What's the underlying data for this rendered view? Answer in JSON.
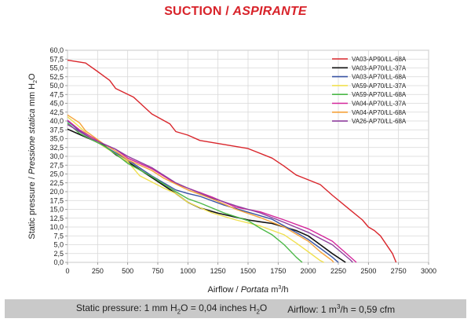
{
  "header": {
    "title_main": "SUCTION / ",
    "title_italic": "ASPIRANTE"
  },
  "footer": {
    "static_pressure_prefix": "Static pressure: 1 mm H",
    "static_pressure_sub": "2",
    "static_pressure_suffix": "O = 0,04 inches H",
    "static_pressure_sub2": "2",
    "static_pressure_end": "O",
    "airflow_prefix": "Airflow: 1 m",
    "airflow_sup": "3",
    "airflow_suffix": "/h = 0,59 cfm"
  },
  "chart_data": {
    "type": "line",
    "title": "SUCTION / ASPIRANTE",
    "xlabel_parts": [
      "Airflow / ",
      "Portata",
      " m",
      "3",
      "/h"
    ],
    "ylabel_parts": [
      "Static pressure / ",
      "Pressione statica",
      " mm H",
      "2",
      "O"
    ],
    "xlim": [
      0,
      3000
    ],
    "ylim": [
      0,
      60
    ],
    "xticks": [
      0,
      250,
      500,
      750,
      1000,
      1250,
      1500,
      1750,
      2000,
      2250,
      2500,
      2750,
      3000
    ],
    "yticks": [
      "0,0",
      "2,5",
      "5,0",
      "7,5",
      "10,0",
      "12,5",
      "15,0",
      "17,5",
      "20,0",
      "22,5",
      "25,0",
      "27,5",
      "30,0",
      "32,5",
      "35,0",
      "37,5",
      "40,0",
      "42,5",
      "45,0",
      "47,5",
      "50,0",
      "52,5",
      "55,0",
      "57,5",
      "60,0"
    ],
    "grid": true,
    "legend_position": "top-right",
    "series": [
      {
        "name": "VA03-AP90/LL-68A",
        "color": "#d9262c",
        "points": [
          [
            0,
            57.2
          ],
          [
            150,
            56.4
          ],
          [
            250,
            54
          ],
          [
            350,
            51.5
          ],
          [
            400,
            49.2
          ],
          [
            550,
            46.7
          ],
          [
            700,
            42
          ],
          [
            850,
            39.2
          ],
          [
            900,
            37
          ],
          [
            1000,
            36
          ],
          [
            1100,
            34.5
          ],
          [
            1500,
            32.2
          ],
          [
            1700,
            29.5
          ],
          [
            1800,
            27.2
          ],
          [
            1900,
            24.7
          ],
          [
            2100,
            22
          ],
          [
            2200,
            19
          ],
          [
            2350,
            14.8
          ],
          [
            2450,
            12
          ],
          [
            2500,
            10
          ],
          [
            2550,
            9
          ],
          [
            2600,
            7.5
          ],
          [
            2700,
            2.5
          ],
          [
            2730,
            0
          ]
        ]
      },
      {
        "name": "VA03-AP70/LL-37A",
        "color": "#111111",
        "points": [
          [
            0,
            37.7
          ],
          [
            100,
            36.2
          ],
          [
            200,
            34.7
          ],
          [
            300,
            33.2
          ],
          [
            400,
            30.5
          ],
          [
            500,
            28.5
          ],
          [
            700,
            24
          ],
          [
            900,
            19.5
          ],
          [
            1000,
            17
          ],
          [
            1100,
            15.4
          ],
          [
            1250,
            13.9
          ],
          [
            1500,
            12
          ],
          [
            1600,
            11.5
          ],
          [
            1700,
            11
          ],
          [
            1800,
            10
          ],
          [
            1900,
            9
          ],
          [
            2000,
            7.5
          ],
          [
            2100,
            5
          ],
          [
            2200,
            2.5
          ],
          [
            2310,
            0
          ]
        ]
      },
      {
        "name": "VA03-AP70/LL-68A",
        "color": "#3a55a4",
        "points": [
          [
            0,
            40
          ],
          [
            100,
            37.2
          ],
          [
            200,
            35
          ],
          [
            300,
            33
          ],
          [
            400,
            31
          ],
          [
            500,
            29
          ],
          [
            700,
            24.5
          ],
          [
            900,
            20.5
          ],
          [
            1000,
            19.5
          ],
          [
            1100,
            18.7
          ],
          [
            1300,
            16.2
          ],
          [
            1500,
            14.2
          ],
          [
            1700,
            12.2
          ],
          [
            1800,
            10.3
          ],
          [
            1900,
            8.5
          ],
          [
            2000,
            6.5
          ],
          [
            2100,
            4
          ],
          [
            2200,
            1.5
          ],
          [
            2250,
            0
          ]
        ]
      },
      {
        "name": "VA59-AP70/LL-37A",
        "color": "#f0e050",
        "points": [
          [
            0,
            41.2
          ],
          [
            100,
            38.3
          ],
          [
            200,
            35.2
          ],
          [
            300,
            32.8
          ],
          [
            400,
            30.7
          ],
          [
            500,
            28.5
          ],
          [
            600,
            24.5
          ],
          [
            800,
            21
          ],
          [
            900,
            19.5
          ],
          [
            1000,
            17
          ],
          [
            1200,
            14
          ],
          [
            1400,
            12
          ],
          [
            1600,
            10.3
          ],
          [
            1800,
            7.8
          ],
          [
            1900,
            5.5
          ],
          [
            2000,
            3
          ],
          [
            2100,
            0.5
          ],
          [
            2130,
            0
          ]
        ]
      },
      {
        "name": "VA59-AP70/LL-68A",
        "color": "#4cb848",
        "points": [
          [
            0,
            39.5
          ],
          [
            100,
            36.5
          ],
          [
            200,
            34.7
          ],
          [
            300,
            33
          ],
          [
            400,
            30.7
          ],
          [
            500,
            28
          ],
          [
            700,
            24.3
          ],
          [
            900,
            20
          ],
          [
            1000,
            18
          ],
          [
            1100,
            16.8
          ],
          [
            1300,
            14
          ],
          [
            1500,
            11.8
          ],
          [
            1600,
            9.7
          ],
          [
            1700,
            7.8
          ],
          [
            1800,
            5
          ],
          [
            1900,
            1.5
          ],
          [
            1950,
            0
          ]
        ]
      },
      {
        "name": "VA04-AP70/LL-37A",
        "color": "#d4279b",
        "points": [
          [
            0,
            40.2
          ],
          [
            100,
            37.5
          ],
          [
            200,
            35.5
          ],
          [
            300,
            33.5
          ],
          [
            400,
            32
          ],
          [
            500,
            29.5
          ],
          [
            700,
            26.5
          ],
          [
            900,
            22.3
          ],
          [
            1000,
            21
          ],
          [
            1200,
            18.5
          ],
          [
            1400,
            15.6
          ],
          [
            1600,
            14.3
          ],
          [
            1800,
            12
          ],
          [
            2000,
            9.5
          ],
          [
            2200,
            6
          ],
          [
            2300,
            3
          ],
          [
            2400,
            0
          ]
        ]
      },
      {
        "name": "VA04-AP70/LL-68A",
        "color": "#f5a23a",
        "points": [
          [
            0,
            41.7
          ],
          [
            100,
            39.5
          ],
          [
            150,
            37.2
          ],
          [
            300,
            33.5
          ],
          [
            400,
            31.5
          ],
          [
            500,
            29
          ],
          [
            700,
            26
          ],
          [
            800,
            23.8
          ],
          [
            1000,
            20.5
          ],
          [
            1200,
            18
          ],
          [
            1400,
            15
          ],
          [
            1600,
            12.7
          ],
          [
            1800,
            10
          ],
          [
            1900,
            8
          ],
          [
            2000,
            6
          ],
          [
            2100,
            3
          ],
          [
            2200,
            0.5
          ],
          [
            2210,
            0
          ]
        ]
      },
      {
        "name": "VA26-AP70/LL-68A",
        "color": "#8f3f9e",
        "points": [
          [
            0,
            39
          ],
          [
            100,
            37
          ],
          [
            200,
            35
          ],
          [
            300,
            33.5
          ],
          [
            400,
            32
          ],
          [
            500,
            30
          ],
          [
            700,
            26.8
          ],
          [
            900,
            22.5
          ],
          [
            1000,
            21
          ],
          [
            1200,
            18.2
          ],
          [
            1400,
            16
          ],
          [
            1600,
            14
          ],
          [
            1800,
            11.3
          ],
          [
            2000,
            8.5
          ],
          [
            2200,
            5
          ],
          [
            2350,
            0.7
          ],
          [
            2370,
            0
          ]
        ]
      }
    ]
  }
}
